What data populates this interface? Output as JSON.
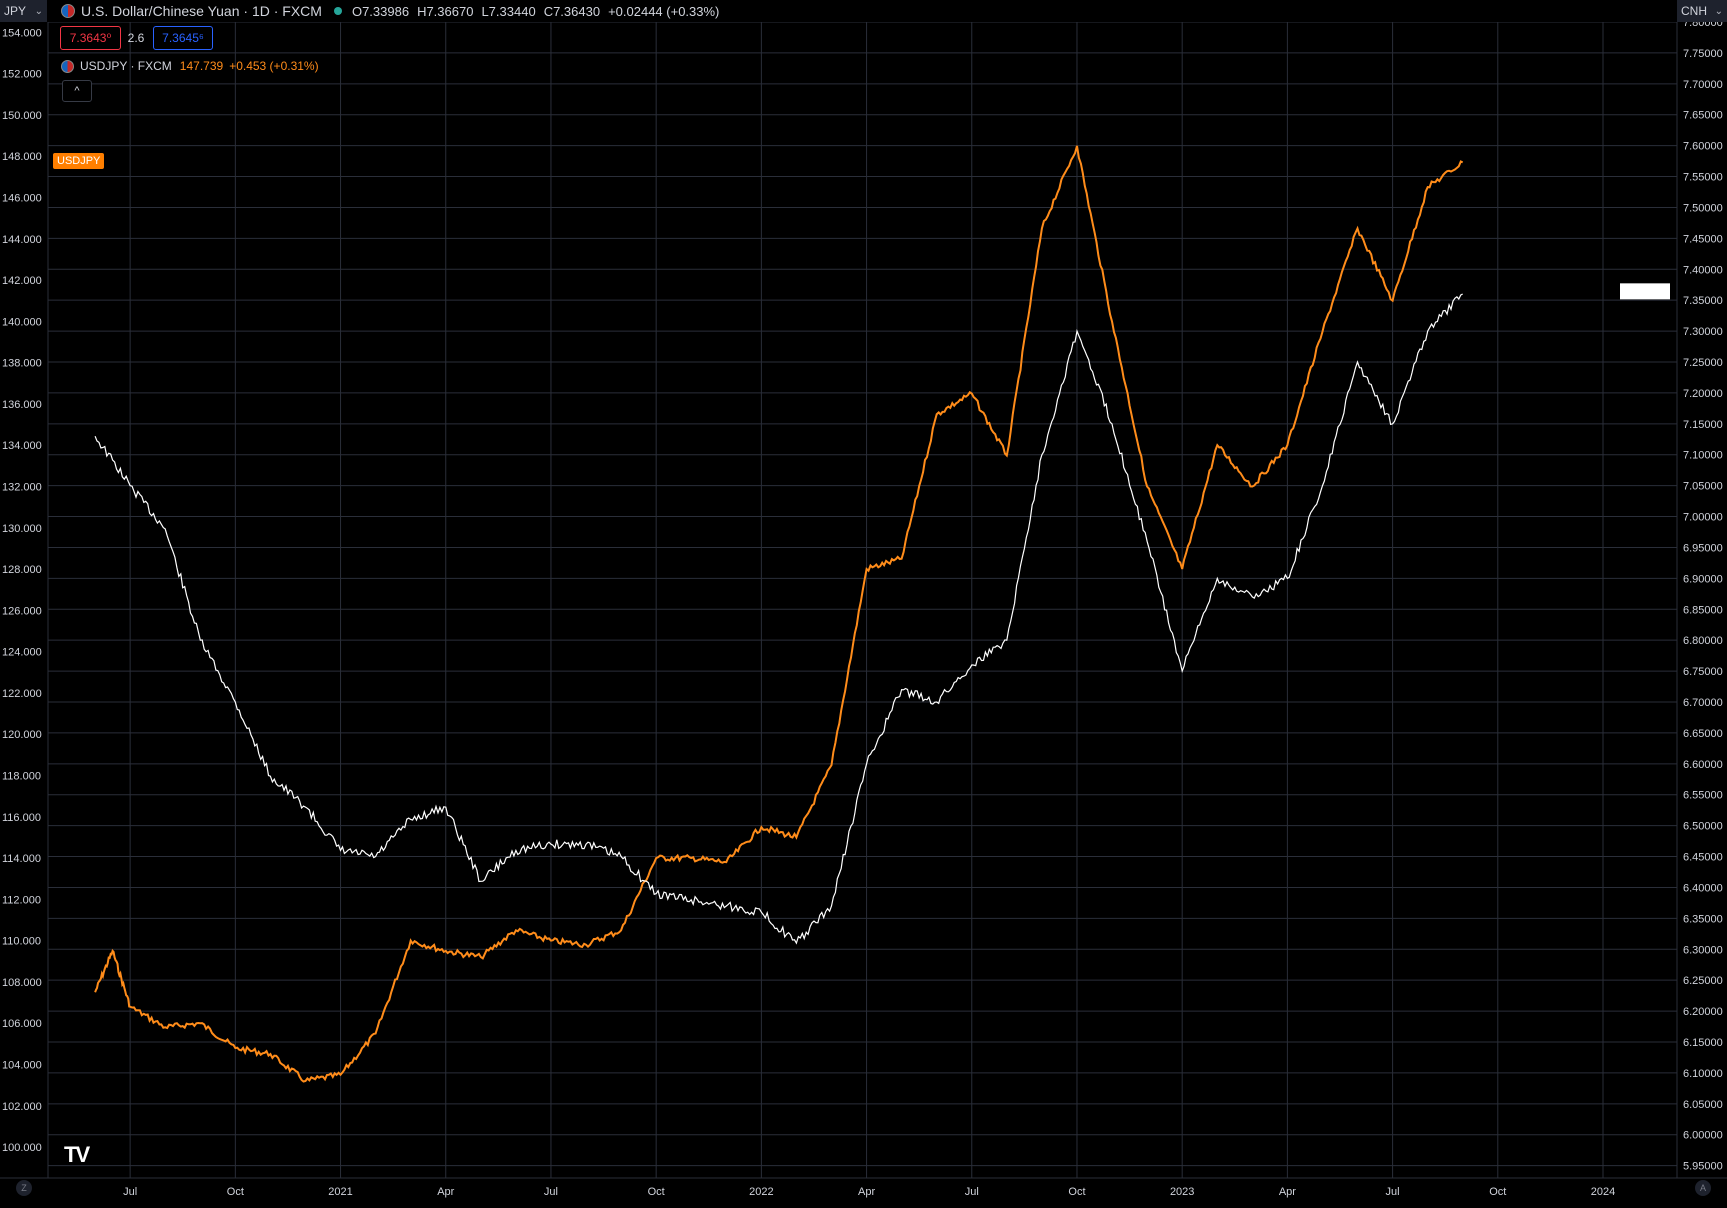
{
  "left_symbol": {
    "label": "JPY"
  },
  "right_symbol": {
    "label": "CNH"
  },
  "main_legend": {
    "title": "U.S. Dollar/Chinese Yuan · 1D · FXCM",
    "open": "O7.33986",
    "high": "H7.36670",
    "low": "L7.33440",
    "close": "C7.36430",
    "change": "+0.02444 (+0.33%)"
  },
  "bid": "7.3643⁰",
  "spread": "2.6",
  "ask": "7.3645⁶",
  "overlay_legend": {
    "name": "USDJPY · FXCM",
    "value": "147.739",
    "change": "+0.453 (+0.31%)"
  },
  "series_tag": "USDJPY",
  "collapse_icon": "chevron-up-icon",
  "logo": "TV",
  "corner_left": "Z",
  "corner_right": "A",
  "colors": {
    "background": "#000000",
    "grid": "#2a2e39",
    "usdcnh": "#ffffff",
    "usdjpy": "#ff8c1a",
    "text": "#d1d4dc",
    "bid": "#f23645",
    "ask": "#2962ff"
  },
  "chart_data": {
    "type": "line",
    "x_tick_labels": [
      "Jul",
      "Oct",
      "2021",
      "Apr",
      "Jul",
      "Oct",
      "2022",
      "Apr",
      "Jul",
      "Oct",
      "2023",
      "Apr",
      "Jul",
      "Oct",
      "2024"
    ],
    "left_axis": {
      "label": "USDJPY",
      "ticks": [
        "154.000",
        "152.000",
        "150.000",
        "148.000",
        "146.000",
        "144.000",
        "142.000",
        "140.000",
        "138.000",
        "136.000",
        "134.000",
        "132.000",
        "130.000",
        "128.000",
        "126.000",
        "124.000",
        "122.000",
        "120.000",
        "118.000",
        "116.000",
        "114.000",
        "112.000",
        "110.000",
        "108.000",
        "106.000",
        "104.000",
        "102.000",
        "100.000"
      ],
      "range": [
        98.5,
        154.5
      ]
    },
    "right_axis": {
      "label": "USDCNH",
      "ticks": [
        "7.80000",
        "7.75000",
        "7.70000",
        "7.65000",
        "7.60000",
        "7.55000",
        "7.50000",
        "7.45000",
        "7.40000",
        "7.35000",
        "7.30000",
        "7.25000",
        "7.20000",
        "7.15000",
        "7.10000",
        "7.05000",
        "7.00000",
        "6.95000",
        "6.90000",
        "6.85000",
        "6.80000",
        "6.75000",
        "6.70000",
        "6.65000",
        "6.60000",
        "6.55000",
        "6.50000",
        "6.45000",
        "6.40000",
        "6.35000",
        "6.30000",
        "6.25000",
        "6.20000",
        "6.15000",
        "6.10000",
        "6.05000",
        "6.00000",
        "5.95000"
      ],
      "range": [
        5.93,
        7.8
      ]
    },
    "series": [
      {
        "name": "USDJPY",
        "axis": "left",
        "x": [
          "2020-06",
          "2020-06",
          "2020-07",
          "2020-08",
          "2020-09",
          "2020-10",
          "2020-11",
          "2020-12",
          "2021-01",
          "2021-02",
          "2021-03",
          "2021-04",
          "2021-05",
          "2021-06",
          "2021-07",
          "2021-08",
          "2021-09",
          "2021-10",
          "2021-11",
          "2021-12",
          "2022-01",
          "2022-02",
          "2022-03",
          "2022-04",
          "2022-05",
          "2022-06",
          "2022-07",
          "2022-08",
          "2022-09",
          "2022-10",
          "2022-11",
          "2022-12",
          "2023-01",
          "2023-02",
          "2023-03",
          "2023-04",
          "2023-05",
          "2023-06",
          "2023-07",
          "2023-08",
          "2023-09"
        ],
        "values": [
          107.5,
          109.5,
          106.8,
          105.8,
          106.0,
          104.8,
          104.5,
          103.2,
          103.5,
          105.5,
          110.0,
          109.5,
          109.2,
          110.5,
          110.0,
          109.8,
          110.5,
          114.0,
          114.0,
          113.8,
          115.5,
          115.0,
          118.5,
          128.0,
          128.5,
          135.5,
          136.5,
          133.5,
          144.5,
          148.5,
          140.0,
          132.0,
          128.0,
          134.0,
          132.0,
          134.0,
          139.5,
          144.5,
          141.0,
          146.5,
          147.7
        ]
      },
      {
        "name": "USDCNH",
        "axis": "right",
        "x": [
          "2020-06",
          "2020-07",
          "2020-08",
          "2020-09",
          "2020-10",
          "2020-11",
          "2020-12",
          "2021-01",
          "2021-02",
          "2021-03",
          "2021-04",
          "2021-05",
          "2021-06",
          "2021-07",
          "2021-08",
          "2021-09",
          "2021-10",
          "2021-11",
          "2021-12",
          "2022-01",
          "2022-02",
          "2022-03",
          "2022-04",
          "2022-05",
          "2022-06",
          "2022-07",
          "2022-08",
          "2022-09",
          "2022-10",
          "2022-11",
          "2022-12",
          "2023-01",
          "2023-02",
          "2023-03",
          "2023-04",
          "2023-05",
          "2023-06",
          "2023-07",
          "2023-08",
          "2023-09"
        ],
        "values": [
          7.13,
          7.05,
          6.98,
          6.8,
          6.7,
          6.58,
          6.53,
          6.46,
          6.45,
          6.51,
          6.53,
          6.41,
          6.46,
          6.47,
          6.47,
          6.45,
          6.39,
          6.38,
          6.37,
          6.36,
          6.31,
          6.37,
          6.6,
          6.72,
          6.7,
          6.76,
          6.8,
          7.1,
          7.3,
          7.15,
          6.96,
          6.75,
          6.9,
          6.87,
          6.9,
          7.05,
          7.25,
          7.15,
          7.3,
          7.36
        ]
      }
    ],
    "price_marker": "7.36430",
    "grid": true
  }
}
